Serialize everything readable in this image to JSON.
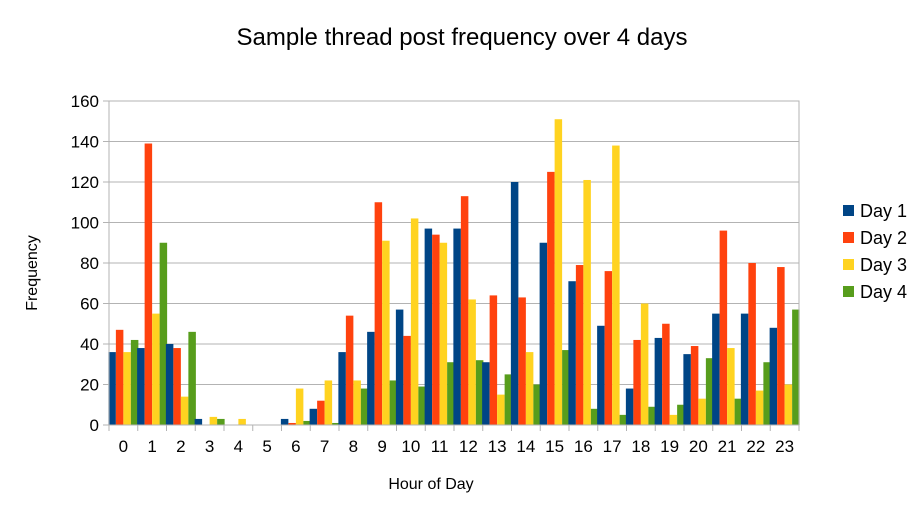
{
  "chart_data": {
    "type": "bar",
    "title": "Sample thread post frequency over 4 days",
    "xlabel": "Hour of Day",
    "ylabel": "Frequency",
    "ylim": [
      0,
      160
    ],
    "yticks": [
      0,
      20,
      40,
      60,
      80,
      100,
      120,
      140,
      160
    ],
    "grid": true,
    "legend_position": "right",
    "categories": [
      "0",
      "1",
      "2",
      "3",
      "4",
      "5",
      "6",
      "7",
      "8",
      "9",
      "10",
      "11",
      "12",
      "13",
      "14",
      "15",
      "16",
      "17",
      "18",
      "19",
      "20",
      "21",
      "22",
      "23"
    ],
    "series": [
      {
        "name": "Day 1",
        "color": "#004586",
        "values": [
          36,
          38,
          40,
          3,
          0,
          0,
          3,
          8,
          36,
          46,
          57,
          97,
          97,
          31,
          120,
          90,
          71,
          49,
          18,
          43,
          35,
          55,
          55,
          48
        ]
      },
      {
        "name": "Day 2",
        "color": "#ff420e",
        "values": [
          47,
          139,
          38,
          0,
          0,
          0,
          1,
          12,
          54,
          110,
          44,
          94,
          113,
          64,
          63,
          125,
          79,
          76,
          42,
          50,
          39,
          96,
          80,
          78
        ]
      },
      {
        "name": "Day 3",
        "color": "#ffd320",
        "values": [
          36,
          55,
          14,
          4,
          3,
          0,
          18,
          22,
          22,
          91,
          102,
          90,
          62,
          15,
          36,
          151,
          121,
          138,
          60,
          5,
          13,
          38,
          17,
          20
        ]
      },
      {
        "name": "Day 4",
        "color": "#579d1c",
        "values": [
          42,
          90,
          46,
          3,
          0,
          0,
          2,
          1,
          18,
          22,
          19,
          31,
          32,
          25,
          20,
          37,
          8,
          5,
          9,
          10,
          33,
          13,
          31,
          57
        ]
      }
    ]
  }
}
